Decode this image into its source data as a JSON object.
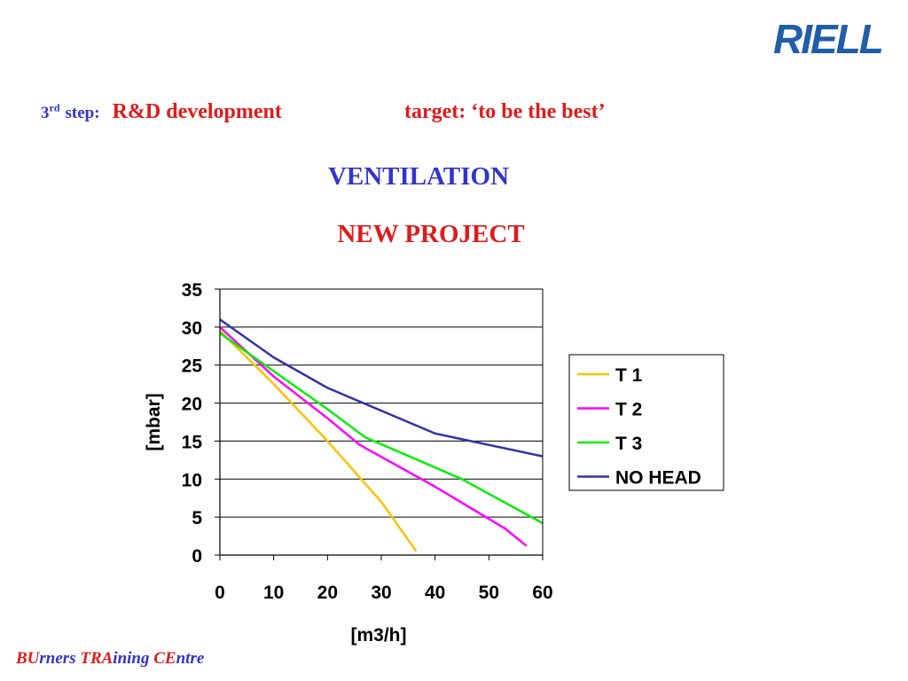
{
  "logo": {
    "text": "RIELLO",
    "color": "#1f5ea8"
  },
  "header": {
    "step_number": "3",
    "step_suffix": "rd",
    "step_label": "step:",
    "step_title": "R&D development",
    "target_text": "target: ‘to be the best’"
  },
  "headings": {
    "primary": "VENTILATION",
    "secondary": "NEW PROJECT"
  },
  "footer": {
    "parts": [
      "BU",
      "rners ",
      "TRA",
      "ining ",
      "CE",
      "ntre"
    ]
  },
  "colors": {
    "blue_text": "#3333cc",
    "red_text": "#e01b1b"
  },
  "chart_data": {
    "type": "line",
    "title": "",
    "xlabel": "[m3/h]",
    "ylabel": "[mbar]",
    "xlim": [
      0,
      60
    ],
    "ylim": [
      0,
      35
    ],
    "x_ticks": [
      0,
      10,
      20,
      30,
      40,
      50,
      60
    ],
    "y_ticks": [
      0,
      5,
      10,
      15,
      20,
      25,
      30,
      35
    ],
    "grid": "horizontal",
    "legend_position": "right",
    "series": [
      {
        "name": "T 1",
        "color": "#ffc000",
        "points": [
          [
            0,
            29.5
          ],
          [
            10,
            22.5
          ],
          [
            20,
            15
          ],
          [
            30,
            7
          ],
          [
            36.5,
            0.5
          ]
        ]
      },
      {
        "name": "T 2",
        "color": "#ff00ff",
        "points": [
          [
            0,
            30
          ],
          [
            10,
            23.5
          ],
          [
            20,
            18
          ],
          [
            26,
            14.5
          ],
          [
            40,
            9
          ],
          [
            53,
            3.5
          ],
          [
            57,
            1.2
          ]
        ]
      },
      {
        "name": "T 3",
        "color": "#00ee00",
        "points": [
          [
            0,
            29.2
          ],
          [
            10,
            24.2
          ],
          [
            20,
            19.2
          ],
          [
            27,
            15.5
          ],
          [
            45,
            10
          ],
          [
            60,
            4.2
          ]
        ]
      },
      {
        "name": "NO HEAD",
        "color": "#3333aa",
        "points": [
          [
            0,
            31
          ],
          [
            10,
            26
          ],
          [
            20,
            22
          ],
          [
            40,
            16
          ],
          [
            60,
            13
          ]
        ]
      }
    ]
  }
}
